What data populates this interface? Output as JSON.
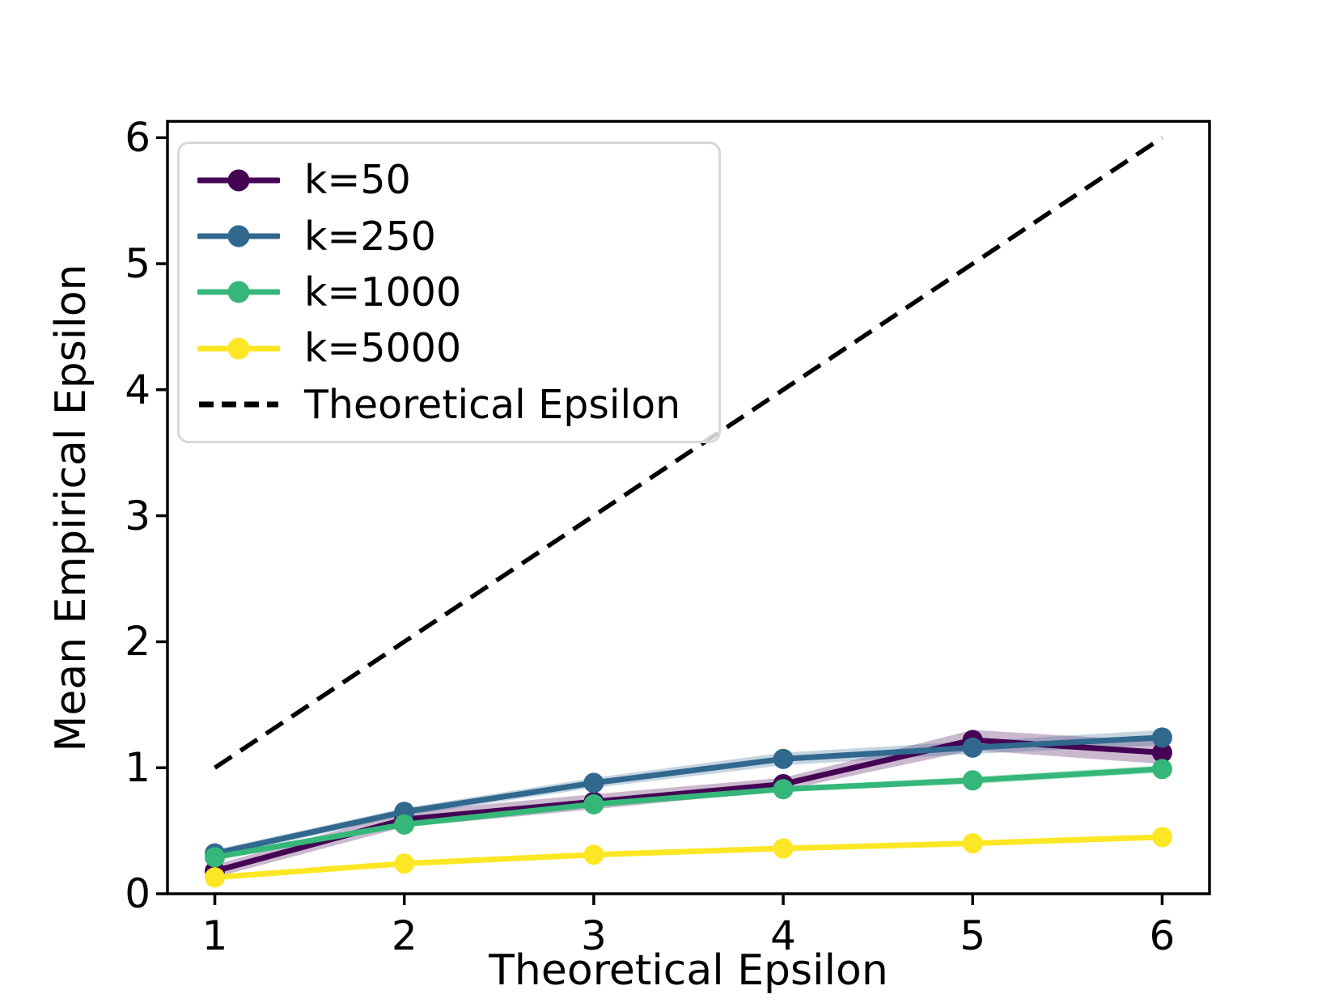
{
  "chart_data": {
    "type": "line",
    "title": "",
    "xlabel": "Theoretical Epsilon",
    "ylabel": "Mean Empirical Epsilon",
    "x": [
      1,
      2,
      3,
      4,
      5,
      6
    ],
    "xticks": [
      "1",
      "2",
      "3",
      "4",
      "5",
      "6"
    ],
    "yticks": [
      "0",
      "1",
      "2",
      "3",
      "4",
      "5",
      "6"
    ],
    "xlim": [
      0.75,
      6.25
    ],
    "ylim": [
      0,
      6.13
    ],
    "grid": false,
    "legend_position": "upper left",
    "series": [
      {
        "name": "k=50",
        "color": "#440154",
        "values": [
          0.18,
          0.59,
          0.73,
          0.87,
          1.22,
          1.12
        ],
        "band": [
          0.05,
          0.06,
          0.06,
          0.05,
          0.08,
          0.09
        ]
      },
      {
        "name": "k=250",
        "color": "#31688e",
        "values": [
          0.32,
          0.65,
          0.88,
          1.07,
          1.16,
          1.24
        ],
        "band": [
          0.03,
          0.03,
          0.04,
          0.05,
          0.05,
          0.06
        ]
      },
      {
        "name": "k=1000",
        "color": "#35b779",
        "values": [
          0.29,
          0.55,
          0.71,
          0.83,
          0.9,
          0.99
        ],
        "band": [
          0.02,
          0.02,
          0.02,
          0.02,
          0.03,
          0.03
        ]
      },
      {
        "name": "k=5000",
        "color": "#fde725",
        "values": [
          0.13,
          0.24,
          0.31,
          0.36,
          0.4,
          0.45
        ],
        "band": [
          0.01,
          0.015,
          0.015,
          0.015,
          0.02,
          0.02
        ]
      }
    ],
    "reference_line": {
      "name": "Theoretical Epsilon",
      "style": "dashed",
      "color": "#000000",
      "from": [
        1,
        1
      ],
      "to": [
        6,
        6
      ]
    }
  }
}
